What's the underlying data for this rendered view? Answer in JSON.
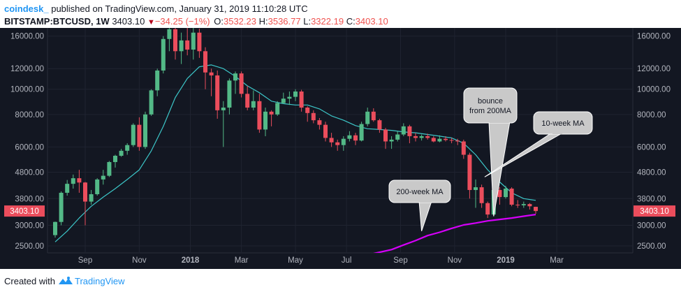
{
  "header": {
    "author": "coindesk_",
    "published": "published on TradingView.com, January 31, 2019 11:10:28 UTC",
    "symbol": "BITSTAMP:BTCUSD, 1W",
    "last_price": "3403.10",
    "arrow": "▼",
    "change": "−34.25 (−1%)",
    "o_label": "O:",
    "o_value": "3532.23",
    "h_label": "H:",
    "h_value": "3536.77",
    "l_label": "L:",
    "l_value": "3322.19",
    "c_label": "C:",
    "c_value": "3403.10"
  },
  "footer": {
    "created_with": "Created with",
    "brand": "TradingView"
  },
  "colors": {
    "background": "#131722",
    "up": "#53b987",
    "down": "#eb4d5c",
    "ma10": "#3cc6c8",
    "ma200": "#d500f9",
    "price_tag": "#eb4d5c",
    "callout_fill": "#c9c9c9"
  },
  "chart_data": {
    "type": "candlestick",
    "title": "BITSTAMP:BTCUSD, 1W",
    "y_scale": "log",
    "ylim": [
      2350,
      17200
    ],
    "y_ticks": [
      2500,
      3000,
      3800,
      4800,
      6000,
      8000,
      10000,
      12000,
      16000
    ],
    "y_tick_labels": [
      "2500.00",
      "3000.00",
      "3800.00",
      "4800.00",
      "6000.00",
      "8000.00",
      "10000.00",
      "12000.00",
      "16000.00"
    ],
    "x_labels": [
      {
        "label": "Sep",
        "week": 5,
        "bold": false
      },
      {
        "label": "Nov",
        "week": 14,
        "bold": false
      },
      {
        "label": "2018",
        "week": 22.5,
        "bold": true
      },
      {
        "label": "Mar",
        "week": 31,
        "bold": false
      },
      {
        "label": "May",
        "week": 40,
        "bold": false
      },
      {
        "label": "Jul",
        "week": 48.5,
        "bold": false
      },
      {
        "label": "Sep",
        "week": 57.5,
        "bold": false
      },
      {
        "label": "Nov",
        "week": 66.5,
        "bold": false
      },
      {
        "label": "2019",
        "week": 75,
        "bold": true
      },
      {
        "label": "Mar",
        "week": 83.5,
        "bold": false
      }
    ],
    "x_axis_unit": "weeks since 2017-07-31",
    "last_price_tag": "3403.10",
    "candles": [
      [
        2750,
        3100,
        2690,
        3090
      ],
      [
        3090,
        4050,
        3000,
        4000
      ],
      [
        4000,
        4480,
        3900,
        4330
      ],
      [
        4330,
        4700,
        4150,
        4550
      ],
      [
        4550,
        4900,
        4000,
        4380
      ],
      [
        4380,
        4400,
        3000,
        3700
      ],
      [
        3700,
        4100,
        3600,
        3950
      ],
      [
        3950,
        4550,
        3900,
        4500
      ],
      [
        4500,
        4900,
        4300,
        4650
      ],
      [
        4650,
        5300,
        4600,
        5250
      ],
      [
        5250,
        5600,
        5000,
        5550
      ],
      [
        5550,
        5900,
        5500,
        5800
      ],
      [
        5800,
        6200,
        5600,
        6100
      ],
      [
        6100,
        7400,
        6000,
        7300
      ],
      [
        7300,
        7800,
        5800,
        6000
      ],
      [
        6000,
        8200,
        5900,
        8000
      ],
      [
        8000,
        10000,
        7900,
        9900
      ],
      [
        9900,
        12000,
        9400,
        11800
      ],
      [
        11800,
        16000,
        11500,
        15600
      ],
      [
        15600,
        19700,
        14000,
        17000
      ],
      [
        17000,
        18000,
        13000,
        14000
      ],
      [
        14000,
        16500,
        12500,
        15400
      ],
      [
        15400,
        17200,
        13500,
        14200
      ],
      [
        14200,
        17500,
        13000,
        16500
      ],
      [
        16500,
        17100,
        13200,
        14000
      ],
      [
        14000,
        14500,
        10000,
        11600
      ],
      [
        11600,
        12000,
        9400,
        11300
      ],
      [
        11300,
        11800,
        7700,
        8300
      ],
      [
        8300,
        9000,
        6000,
        8500
      ],
      [
        8500,
        11000,
        8000,
        10800
      ],
      [
        10800,
        11700,
        9600,
        11500
      ],
      [
        11500,
        11700,
        9300,
        9600
      ],
      [
        9600,
        10300,
        8300,
        8500
      ],
      [
        8500,
        9900,
        8300,
        9000
      ],
      [
        9000,
        9600,
        6800,
        7000
      ],
      [
        7000,
        8500,
        6600,
        8200
      ],
      [
        8200,
        8300,
        7200,
        8000
      ],
      [
        8000,
        9000,
        7900,
        8850
      ],
      [
        8850,
        9700,
        8800,
        9200
      ],
      [
        9200,
        9800,
        8700,
        9350
      ],
      [
        9350,
        10000,
        9000,
        9800
      ],
      [
        9800,
        9950,
        8200,
        8500
      ],
      [
        8500,
        8600,
        7500,
        8100
      ],
      [
        8100,
        8300,
        7400,
        7600
      ],
      [
        7600,
        7750,
        7000,
        7300
      ],
      [
        7300,
        7500,
        6300,
        6500
      ],
      [
        6500,
        6800,
        6000,
        6250
      ],
      [
        6250,
        6400,
        5800,
        6100
      ],
      [
        6100,
        6600,
        5800,
        6450
      ],
      [
        6450,
        6900,
        6300,
        6650
      ],
      [
        6650,
        6800,
        6100,
        6350
      ],
      [
        6350,
        7500,
        6300,
        7350
      ],
      [
        7350,
        8500,
        7200,
        8200
      ],
      [
        8200,
        8450,
        7500,
        7600
      ],
      [
        7600,
        7700,
        6800,
        7000
      ],
      [
        7000,
        7100,
        5900,
        6300
      ],
      [
        6300,
        6600,
        5900,
        6400
      ],
      [
        6400,
        6900,
        6300,
        6700
      ],
      [
        6700,
        7400,
        6600,
        7200
      ],
      [
        7200,
        7300,
        6200,
        6600
      ],
      [
        6600,
        6800,
        6300,
        6500
      ],
      [
        6500,
        6700,
        6350,
        6600
      ],
      [
        6600,
        6750,
        6400,
        6500
      ],
      [
        6500,
        6600,
        6250,
        6300
      ],
      [
        6300,
        6650,
        6250,
        6450
      ],
      [
        6450,
        6600,
        6300,
        6380
      ],
      [
        6380,
        6500,
        6200,
        6350
      ],
      [
        6350,
        6450,
        6100,
        6300
      ],
      [
        6300,
        6400,
        5400,
        5600
      ],
      [
        5600,
        5700,
        3800,
        4100
      ],
      [
        4100,
        4500,
        3500,
        4200
      ],
      [
        4200,
        4300,
        3500,
        3650
      ],
      [
        3650,
        3700,
        3200,
        3300
      ],
      [
        3300,
        4300,
        3250,
        4100
      ],
      [
        4100,
        4200,
        3600,
        3850
      ],
      [
        3850,
        4250,
        3800,
        4150
      ],
      [
        4150,
        4200,
        3550,
        3600
      ],
      [
        3600,
        3750,
        3500,
        3580
      ],
      [
        3580,
        3700,
        3500,
        3620
      ],
      [
        3620,
        3650,
        3450,
        3550
      ],
      [
        3532.23,
        3536.77,
        3322.19,
        3403.1
      ]
    ],
    "ma10": {
      "name": "10-week MA",
      "points": [
        [
          0,
          2590
        ],
        [
          2,
          2850
        ],
        [
          4,
          3200
        ],
        [
          6,
          3550
        ],
        [
          8,
          3850
        ],
        [
          10,
          4150
        ],
        [
          12,
          4500
        ],
        [
          14,
          4900
        ],
        [
          16,
          5800
        ],
        [
          18,
          7200
        ],
        [
          20,
          9300
        ],
        [
          22,
          11000
        ],
        [
          24,
          12200
        ],
        [
          26,
          12400
        ],
        [
          28,
          12000
        ],
        [
          30,
          11200
        ],
        [
          32,
          10300
        ],
        [
          34,
          9700
        ],
        [
          36,
          9000
        ],
        [
          38,
          8800
        ],
        [
          40,
          8700
        ],
        [
          42,
          8700
        ],
        [
          44,
          8400
        ],
        [
          46,
          7900
        ],
        [
          48,
          7600
        ],
        [
          50,
          7250
        ],
        [
          52,
          7050
        ],
        [
          54,
          7000
        ],
        [
          56,
          6950
        ],
        [
          58,
          6850
        ],
        [
          60,
          6800
        ],
        [
          62,
          6700
        ],
        [
          64,
          6600
        ],
        [
          66,
          6500
        ],
        [
          68,
          6200
        ],
        [
          70,
          5600
        ],
        [
          72,
          4900
        ],
        [
          74,
          4400
        ],
        [
          76,
          4000
        ],
        [
          78,
          3800
        ],
        [
          80,
          3740
        ]
      ]
    },
    "ma200": {
      "name": "200-week MA",
      "points": [
        [
          53,
          2335
        ],
        [
          56,
          2420
        ],
        [
          58,
          2520
        ],
        [
          60,
          2620
        ],
        [
          62,
          2740
        ],
        [
          64,
          2820
        ],
        [
          66,
          2920
        ],
        [
          68,
          3010
        ],
        [
          70,
          3060
        ],
        [
          72,
          3120
        ],
        [
          74,
          3160
        ],
        [
          76,
          3200
        ],
        [
          78,
          3250
        ],
        [
          80,
          3300
        ]
      ]
    },
    "annotations": [
      {
        "text_lines": [
          "bounce",
          "from 200MA"
        ],
        "target_week": 73,
        "target_value": 3250
      },
      {
        "text_lines": [
          "10-week MA"
        ],
        "target_week": 71.5,
        "target_value": 4600
      },
      {
        "text_lines": [
          "200-week MA"
        ],
        "target_week": 61,
        "target_value": 2850
      }
    ]
  }
}
